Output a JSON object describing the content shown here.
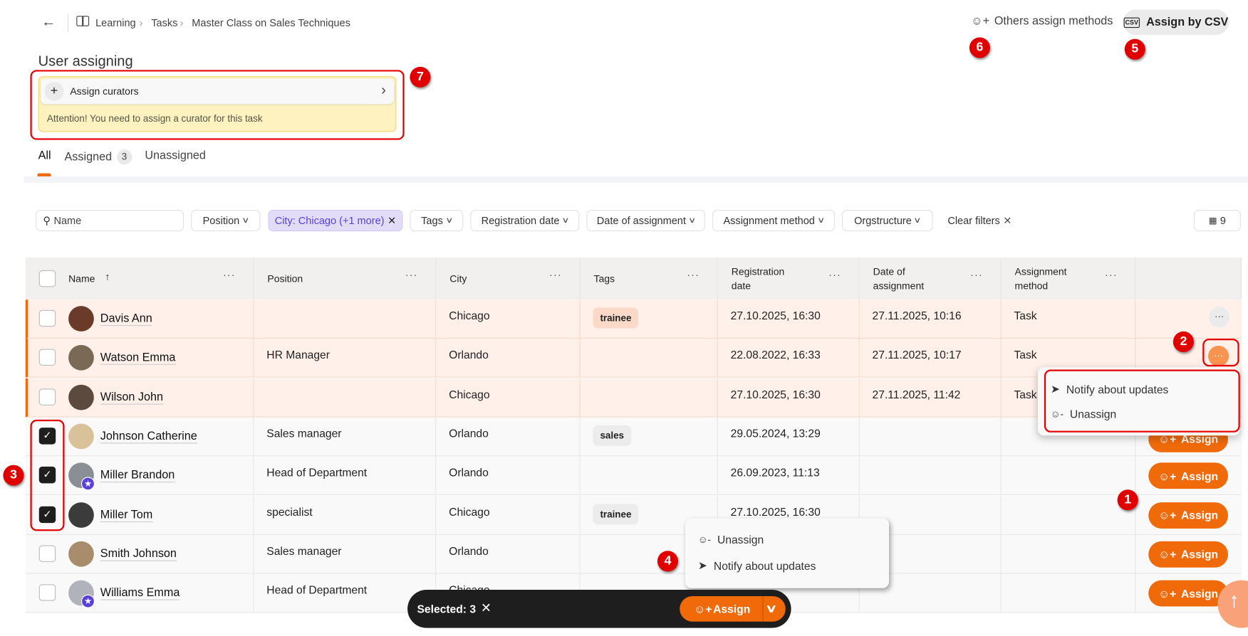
{
  "header": {
    "breadcrumb": [
      "Learning",
      "Tasks",
      "Master Class on Sales Techniques"
    ],
    "others_label": "Others assign methods",
    "csv_label": "Assign by CSV"
  },
  "page_title": "User assigning",
  "curator": {
    "label": "Assign curators",
    "warning": "Attention! You need to assign a curator for this task"
  },
  "tabs": [
    {
      "label": "All",
      "active": true
    },
    {
      "label": "Assigned",
      "count": "3"
    },
    {
      "label": "Unassigned"
    }
  ],
  "filters": {
    "search_placeholder": "Name",
    "position": "Position",
    "city": "City: Chicago (+1 more)",
    "tags": "Tags",
    "registration": "Registration date",
    "date_assignment": "Date of assignment",
    "method": "Assignment method",
    "org": "Orgstructure",
    "clear": "Clear filters",
    "columns_count": "9"
  },
  "columns": [
    "Name",
    "Position",
    "City",
    "Tags",
    "Registration\ndate",
    "Date of\nassignment",
    "Assignment\nmethod"
  ],
  "rows": [
    {
      "name": "Davis Ann",
      "position": "",
      "city": "Chicago",
      "tag": "trainee",
      "reg": "27.10.2025, 16:30",
      "assigned": "27.11.2025, 10:16",
      "method": "Task",
      "status": "assigned",
      "selected": false,
      "avatar": "#6b3b2a"
    },
    {
      "name": "Watson Emma",
      "position": "HR Manager",
      "city": "Orlando",
      "tag": "",
      "reg": "22.08.2022, 16:33",
      "assigned": "27.11.2025, 10:17",
      "method": "Task",
      "status": "assigned",
      "selected": false,
      "avatar": "#7a6a55"
    },
    {
      "name": "Wilson John",
      "position": "",
      "city": "Chicago",
      "tag": "",
      "reg": "27.10.2025, 16:30",
      "assigned": "27.11.2025, 11:42",
      "method": "Task",
      "status": "assigned",
      "selected": false,
      "avatar": "#5d4a3e"
    },
    {
      "name": "Johnson Catherine",
      "position": "Sales manager",
      "city": "Orlando",
      "tag": "sales",
      "reg": "29.05.2024, 13:29",
      "assigned": "",
      "method": "",
      "status": "unassigned",
      "selected": true,
      "avatar": "#d9c29a"
    },
    {
      "name": "Miller Brandon",
      "position": "Head of Department",
      "city": "Orlando",
      "tag": "",
      "reg": "26.09.2023, 11:13",
      "assigned": "",
      "method": "",
      "status": "unassigned",
      "selected": true,
      "avatar": "#8a8f96",
      "star": true
    },
    {
      "name": "Miller Tom",
      "position": "specialist",
      "city": "Chicago",
      "tag": "trainee",
      "reg": "27.10.2025, 16:30",
      "assigned": "",
      "method": "",
      "status": "unassigned",
      "selected": true,
      "avatar": "#3b3b3b"
    },
    {
      "name": "Smith Johnson",
      "position": "Sales manager",
      "city": "Orlando",
      "tag": "",
      "reg": "",
      "assigned": "",
      "method": "",
      "status": "unassigned",
      "selected": false,
      "avatar": "#a88c6c"
    },
    {
      "name": "Williams Emma",
      "position": "Head of Department",
      "city": "Chicago",
      "tag": "",
      "reg": "",
      "assigned": "",
      "method": "",
      "status": "unassigned",
      "selected": false,
      "avatar": "#b0b4ba",
      "star": true
    }
  ],
  "assign_label": "Assign",
  "row_menu": {
    "notify": "Notify about updates",
    "unassign": "Unassign"
  },
  "bulk_menu": {
    "unassign": "Unassign",
    "notify": "Notify about updates"
  },
  "bottom_bar": {
    "selected": "Selected: 3",
    "assign": "Assign"
  },
  "annotations": [
    "1",
    "2",
    "3",
    "4",
    "5",
    "6",
    "7"
  ],
  "colors": {
    "accent": "#f06a0a",
    "filter_active": "#e3dcf9",
    "warning_bg": "#fdf2c0",
    "annotation": "#e50000"
  }
}
